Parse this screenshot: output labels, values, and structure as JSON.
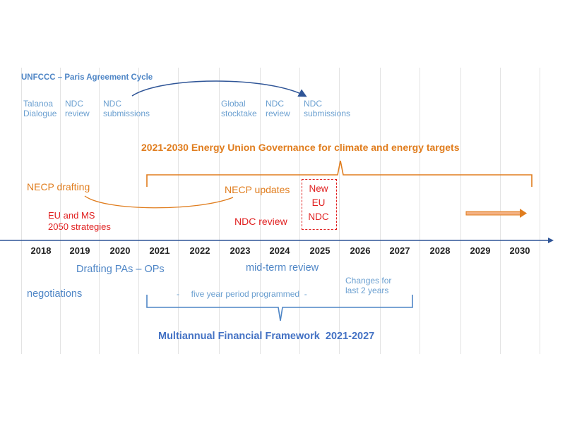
{
  "unfccc": {
    "title": "UNFCCC – Paris Agreement Cycle",
    "items": [
      {
        "line1": "Talanoa",
        "line2": "Dialogue"
      },
      {
        "line1": "NDC",
        "line2": "review"
      },
      {
        "line1": "NDC",
        "line2": "submissions"
      },
      {
        "line1": "Global",
        "line2": "stocktake"
      },
      {
        "line1": "NDC",
        "line2": "review"
      },
      {
        "line1": "NDC",
        "line2": "submissions"
      }
    ]
  },
  "energy_union": {
    "title": "2021-2030 Energy Union Governance for climate and energy targets",
    "necp_drafting": "NECP drafting",
    "necp_updates": "NECP updates",
    "eu_ms_line1": "EU and MS",
    "eu_ms_line2": "2050 strategies",
    "ndc_review": "NDC review",
    "new_eu_ndc": [
      "New",
      "EU",
      "NDC"
    ]
  },
  "years": [
    "2018",
    "2019",
    "2020",
    "2021",
    "2022",
    "2023",
    "2024",
    "2025",
    "2026",
    "2027",
    "2028",
    "2029",
    "2030"
  ],
  "mff": {
    "drafting": "Drafting PAs – OPs",
    "mid_term": "mid-term review",
    "negotiations": "negotiations",
    "changes_line1": "Changes for",
    "changes_line2": "last 2 years",
    "five_year": "-     five year period programmed  -",
    "title": "Multiannual Financial Framework  2021-2027"
  },
  "colors": {
    "blue": "#4f86c6",
    "light_blue": "#6a9fd0",
    "orange": "#e07d1e",
    "red": "#e02020",
    "axis": "#2f5597"
  }
}
